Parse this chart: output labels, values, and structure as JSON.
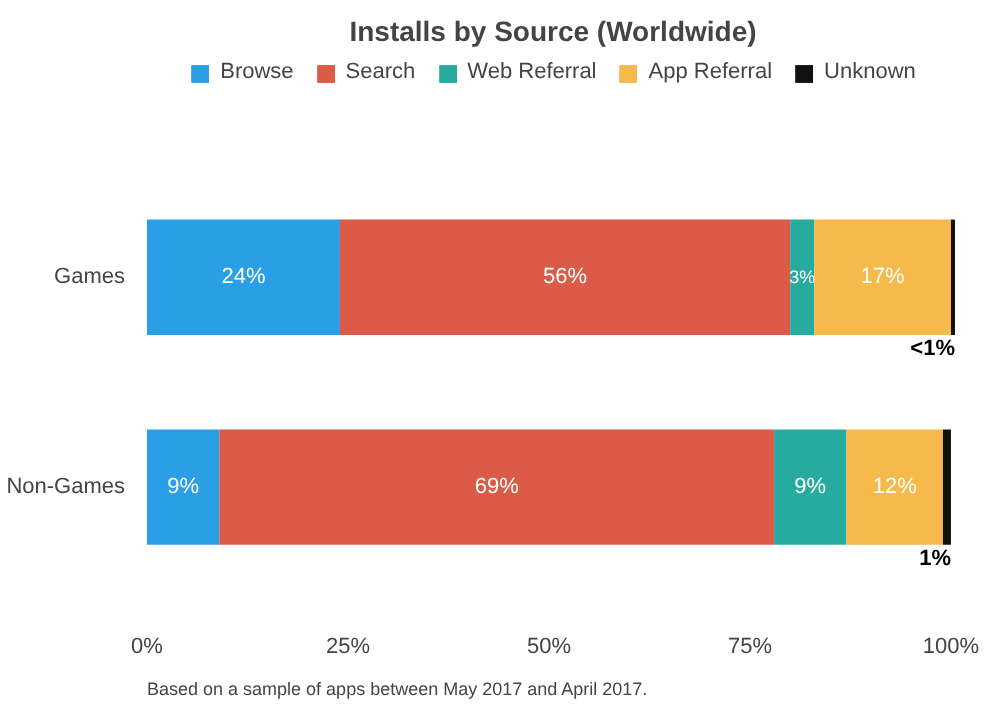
{
  "chart_data": {
    "type": "bar",
    "orientation": "horizontal",
    "stacked": true,
    "title": "Installs by Source (Worldwide)",
    "categories": [
      "Games",
      "Non-Games"
    ],
    "series": [
      {
        "name": "Browse",
        "color": "#2b9fe6",
        "values": [
          24,
          9
        ],
        "value_labels": [
          "24%",
          "9%"
        ]
      },
      {
        "name": "Search",
        "color": "#dc5b48",
        "values": [
          56,
          69
        ],
        "value_labels": [
          "56%",
          "69%"
        ]
      },
      {
        "name": "Web Referral",
        "color": "#27ab9e",
        "values": [
          3,
          9
        ],
        "value_labels": [
          "3%",
          "9%"
        ]
      },
      {
        "name": "App Referral",
        "color": "#f5b94c",
        "values": [
          17,
          12
        ],
        "value_labels": [
          "17%",
          "12%"
        ]
      },
      {
        "name": "Unknown",
        "color": "#111111",
        "values": [
          0.5,
          1
        ],
        "value_labels": [
          "<1%",
          "1%"
        ]
      }
    ],
    "xlim": [
      0,
      101
    ],
    "xticks": [
      {
        "value": 0,
        "label": "0%"
      },
      {
        "value": 25,
        "label": "25%"
      },
      {
        "value": 50,
        "label": "50%"
      },
      {
        "value": 75,
        "label": "75%"
      },
      {
        "value": 100,
        "label": "100%"
      }
    ],
    "grid": false,
    "legend": "top",
    "annotations": [
      "Based on a sample of apps between May 2017 and April 2017."
    ]
  }
}
